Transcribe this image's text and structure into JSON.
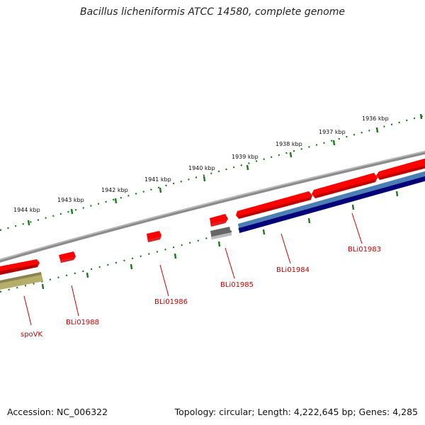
{
  "title": "Bacillus licheniformis ATCC 14580, complete genome",
  "footer": {
    "accession": "Accession: NC_006322",
    "summary": "Topology: circular; Length: 4,222,645 bp; Genes: 4,285"
  },
  "ticks": [
    {
      "label": "1944 kbp"
    },
    {
      "label": "1943 kbp"
    },
    {
      "label": "1942 kbp"
    },
    {
      "label": "1941 kbp"
    },
    {
      "label": "1940 kbp"
    },
    {
      "label": "1939 kbp"
    },
    {
      "label": "1938 kbp"
    },
    {
      "label": "1937 kbp"
    },
    {
      "label": "1936 kbp"
    }
  ],
  "genes": [
    {
      "name": "spoVK",
      "color": "#ff0000"
    },
    {
      "name": "BLi01988",
      "color": "#ff0000"
    },
    {
      "name": "BLi01986",
      "color": "#ff0000"
    },
    {
      "name": "BLi01985",
      "color": "#ff0000"
    },
    {
      "name": "BLi01984",
      "color": "#ff0000"
    },
    {
      "name": "BLi01983",
      "color": "#ff0000"
    }
  ],
  "colors": {
    "backbone": "#8c8c8c",
    "gene": "#ff0000",
    "cds_olive": "#b5ad6a",
    "cds_gray": "#666666",
    "cds_steelblue": "#4a7fb5",
    "cds_navy": "#00007a",
    "tick": "#1a7a1a",
    "label": "#cc0000"
  }
}
